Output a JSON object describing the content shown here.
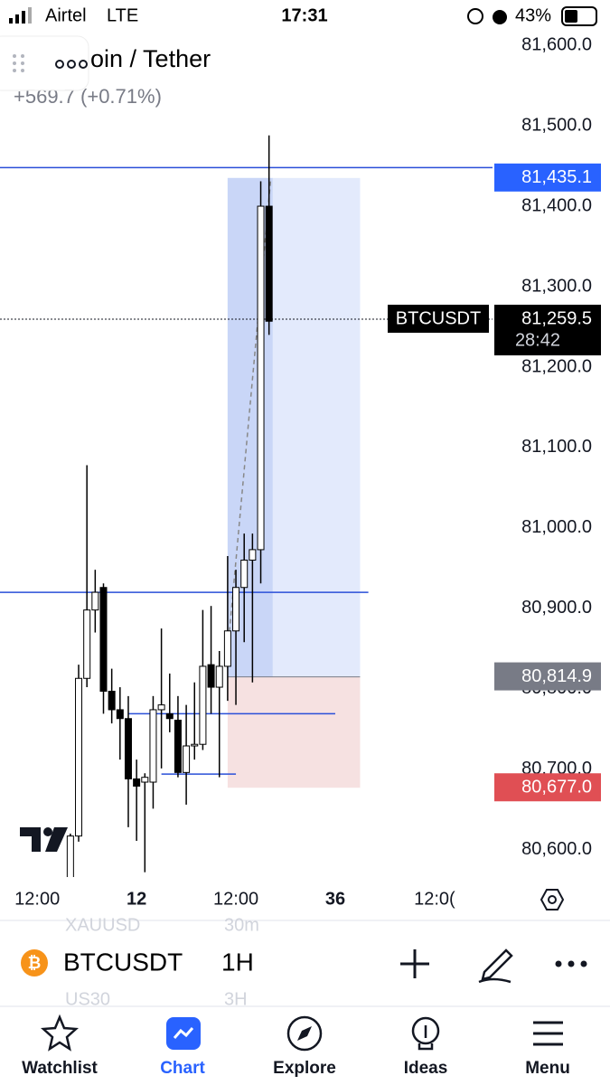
{
  "status_bar": {
    "carrier": "Airtel",
    "network": "LTE",
    "time": "17:31",
    "battery": "43%"
  },
  "header": {
    "title": "oin / Tether",
    "change": "+569.7 (+0.71%)"
  },
  "chart_data": {
    "type": "candlestick",
    "x": [
      4,
      5,
      6,
      7,
      8,
      9,
      10,
      11,
      12,
      13,
      14,
      15,
      16,
      17,
      18,
      19,
      20,
      21,
      22,
      23,
      24,
      25,
      26,
      27,
      28
    ],
    "open": [
      80560,
      80617,
      80813,
      80898,
      80926,
      80797,
      80774,
      80763,
      80688,
      80684,
      80684,
      80774,
      80769,
      80761,
      80696,
      80729,
      80731,
      80830,
      80802,
      80828,
      80872,
      80926,
      80960,
      80973,
      81400
    ],
    "close": [
      80617,
      80813,
      80898,
      80920,
      80797,
      80774,
      80763,
      80688,
      80679,
      80690,
      80774,
      80780,
      80763,
      80696,
      80729,
      80731,
      80828,
      80802,
      80828,
      80872,
      80926,
      80960,
      80973,
      81400,
      81257
    ],
    "high": [
      80620,
      80830,
      81078,
      80948,
      80931,
      80825,
      80802,
      80791,
      80712,
      80695,
      80791,
      80875,
      80819,
      80791,
      80780,
      80808,
      80898,
      80903,
      80847,
      80965,
      80948,
      80993,
      80993,
      81431,
      81488
    ],
    "low": [
      80555,
      80610,
      80802,
      80870,
      80769,
      80757,
      80712,
      80628,
      80611,
      80572,
      80651,
      80701,
      80746,
      80690,
      80656,
      80712,
      80724,
      80769,
      80690,
      80785,
      80780,
      80858,
      80808,
      80931,
      81240
    ],
    "xlim": [
      -4.5,
      55
    ],
    "xticks": [
      {
        "value": 0,
        "label": "12:00"
      },
      12,
      {
        "value": 24,
        "label": "12:00"
      },
      36,
      {
        "value": 48,
        "label": "12:0("
      }
    ],
    "ylim": [
      80566,
      81617
    ],
    "yticks": [
      {
        "value": 80600,
        "label": "80,600.0"
      },
      {
        "value": 80700,
        "label": "80,700.0"
      },
      {
        "value": 80800,
        "label": "80,800.0"
      },
      {
        "value": 80900,
        "label": "80,900.0"
      },
      {
        "value": 81000,
        "label": "81,000.0"
      },
      {
        "value": 81100,
        "label": "81,100.0"
      },
      {
        "value": 81200,
        "label": "81,200.0"
      },
      {
        "value": 81300,
        "label": "81,300.0"
      },
      {
        "value": 81400,
        "label": "81,400.0"
      },
      {
        "value": 81500,
        "label": "81,500.0"
      },
      {
        "value": 81600,
        "label": "81,600.0"
      }
    ],
    "position": {
      "start": 23,
      "end": 39,
      "entry": 80814.9,
      "entry_label": "80,814.9",
      "target": 81435.1,
      "target_label": "81,435.1",
      "stop": 80677.0,
      "stop_label": "80,677.0"
    },
    "hlines": [
      {
        "value": 81448,
        "start": -4.5,
        "end": 55
      },
      {
        "value": 80920,
        "start": -4.5,
        "end": 40
      },
      {
        "value": 80769,
        "start": 11,
        "end": 36
      },
      {
        "value": 80694,
        "start": 15,
        "end": 24
      }
    ],
    "last_price": {
      "symbol": "BTCUSDT",
      "value": 81259.5,
      "value_label": "81,259.5",
      "countdown": "28:42"
    }
  },
  "symbol_bar": {
    "symbol": "BTCUSDT",
    "interval": "1H",
    "ghost": [
      "XAUUSD",
      "30m",
      "US30",
      "3H"
    ]
  },
  "nav": [
    "Watchlist",
    "Chart",
    "Explore",
    "Ideas",
    "Menu"
  ]
}
